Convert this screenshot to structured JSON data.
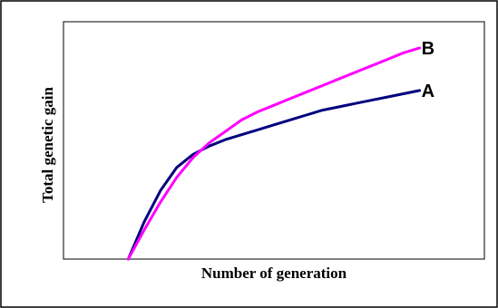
{
  "chart_data": {
    "type": "line",
    "xlabel": "Number of generation",
    "ylabel": "Total genetic gain",
    "title": "",
    "grid": false,
    "legend": "none (series labels at line ends)",
    "series": [
      {
        "name": "A",
        "color": "#000080",
        "x": [
          0,
          0.5,
          1,
          1.5,
          2,
          2.5,
          3,
          3.5,
          4,
          4.5,
          5,
          5.5,
          6,
          6.5,
          7,
          7.5,
          8,
          8.5,
          9
        ],
        "y": [
          0,
          2.3,
          4.2,
          5.6,
          6.4,
          6.9,
          7.3,
          7.6,
          7.9,
          8.2,
          8.5,
          8.8,
          9.1,
          9.3,
          9.5,
          9.7,
          9.9,
          10.1,
          10.3
        ]
      },
      {
        "name": "B",
        "color": "#ff00ff",
        "x": [
          0,
          0.5,
          1,
          1.5,
          2,
          2.5,
          3,
          3.5,
          4,
          4.5,
          5,
          5.5,
          6,
          6.5,
          7,
          7.5,
          8,
          8.5,
          9
        ],
        "y": [
          0,
          1.8,
          3.5,
          5.0,
          6.2,
          7.1,
          7.8,
          8.5,
          9.0,
          9.4,
          9.8,
          10.2,
          10.6,
          11.0,
          11.4,
          11.8,
          12.2,
          12.6,
          12.9
        ]
      }
    ],
    "xlim": [
      -2,
      11
    ],
    "ylim": [
      0,
      14.5
    ]
  }
}
